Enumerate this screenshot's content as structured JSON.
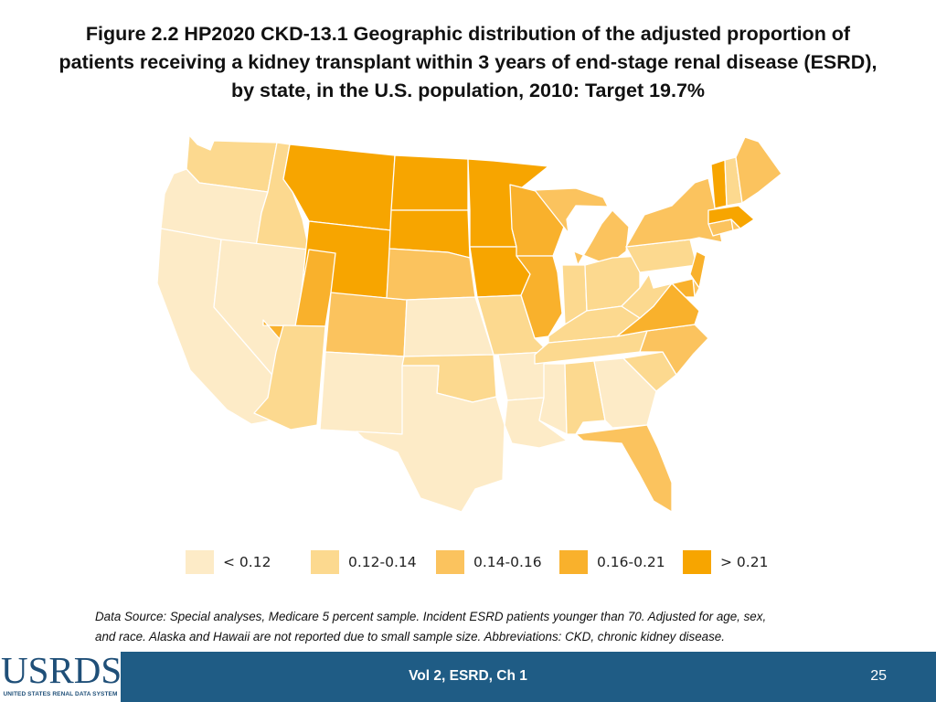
{
  "slide": {
    "title": "Figure 2.2 HP2020 CKD-13.1 Geographic distribution of the adjusted proportion of patients receiving a kidney transplant within 3 years of end-stage renal disease (ESRD), by state, in the U.S. population, 2010: Target 19.7%"
  },
  "map": {
    "legend": [
      {
        "label": "< 0.12",
        "color": "#fdebc7"
      },
      {
        "label": "0.12-0.14",
        "color": "#fcd98f"
      },
      {
        "label": "0.14-0.16",
        "color": "#fbc35e"
      },
      {
        "label": "0.16-0.21",
        "color": "#f9b12c"
      },
      {
        "label": "> 0.21",
        "color": "#f7a500"
      }
    ],
    "states": [
      {
        "code": "WA",
        "bin": 1
      },
      {
        "code": "OR",
        "bin": 0
      },
      {
        "code": "CA",
        "bin": 0
      },
      {
        "code": "ID",
        "bin": 1
      },
      {
        "code": "NV",
        "bin": 0
      },
      {
        "code": "MT",
        "bin": 4
      },
      {
        "code": "WY",
        "bin": 4
      },
      {
        "code": "UT",
        "bin": 3
      },
      {
        "code": "AZ",
        "bin": 1
      },
      {
        "code": "CO",
        "bin": 2
      },
      {
        "code": "NM",
        "bin": 0
      },
      {
        "code": "ND",
        "bin": 4
      },
      {
        "code": "SD",
        "bin": 4
      },
      {
        "code": "NE",
        "bin": 2
      },
      {
        "code": "KS",
        "bin": 0
      },
      {
        "code": "OK",
        "bin": 1
      },
      {
        "code": "TX",
        "bin": 0
      },
      {
        "code": "MN",
        "bin": 4
      },
      {
        "code": "IA",
        "bin": 4
      },
      {
        "code": "MO",
        "bin": 1
      },
      {
        "code": "AR",
        "bin": 0
      },
      {
        "code": "LA",
        "bin": 0
      },
      {
        "code": "WI",
        "bin": 3
      },
      {
        "code": "IL",
        "bin": 3
      },
      {
        "code": "MI",
        "bin": 2
      },
      {
        "code": "IN",
        "bin": 1
      },
      {
        "code": "OH",
        "bin": 1
      },
      {
        "code": "KY",
        "bin": 1
      },
      {
        "code": "TN",
        "bin": 1
      },
      {
        "code": "MS",
        "bin": 0
      },
      {
        "code": "AL",
        "bin": 1
      },
      {
        "code": "GA",
        "bin": 0
      },
      {
        "code": "FL",
        "bin": 2
      },
      {
        "code": "SC",
        "bin": 1
      },
      {
        "code": "NC",
        "bin": 2
      },
      {
        "code": "VA",
        "bin": 3
      },
      {
        "code": "WV",
        "bin": 1
      },
      {
        "code": "PA",
        "bin": 1
      },
      {
        "code": "NY",
        "bin": 2
      },
      {
        "code": "NJ",
        "bin": 3
      },
      {
        "code": "DE",
        "bin": 2
      },
      {
        "code": "MD",
        "bin": 3
      },
      {
        "code": "CT",
        "bin": 2
      },
      {
        "code": "RI",
        "bin": 2
      },
      {
        "code": "MA",
        "bin": 4
      },
      {
        "code": "VT",
        "bin": 4
      },
      {
        "code": "NH",
        "bin": 1
      },
      {
        "code": "ME",
        "bin": 2
      }
    ]
  },
  "note": {
    "line1": "Data Source: Special analyses, Medicare 5 percent sample. Incident ESRD patients younger than 70.  Adjusted for age, sex,",
    "line2": "and race. Alaska and Hawaii are not reported due to small sample size. Abbreviations: CKD, chronic kidney disease."
  },
  "footer": {
    "logo_text": "USRDS",
    "logo_subtext": "UNITED STATES RENAL DATA SYSTEM",
    "center_text": "Vol 2, ESRD, Ch 1",
    "page_number": "25",
    "bar_color": "#1f5c85"
  }
}
